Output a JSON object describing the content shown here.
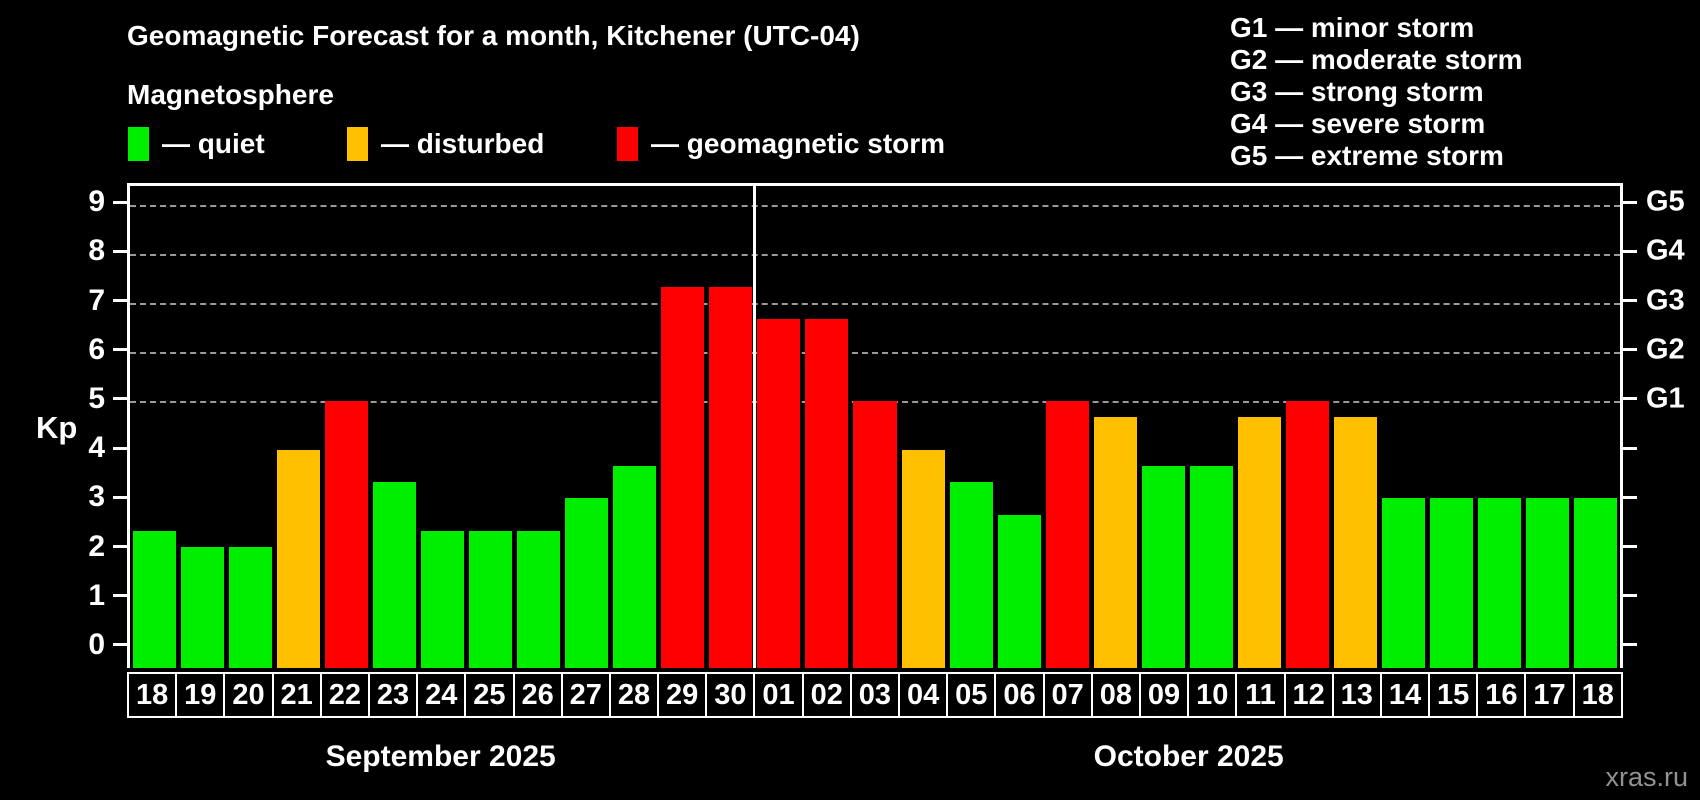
{
  "header": {
    "title": "Geomagnetic Forecast for a month, Kitchener (UTC-04)",
    "subtitle": "Magnetosphere"
  },
  "legend": {
    "items": [
      {
        "label": "— quiet",
        "level": "quiet"
      },
      {
        "label": "— disturbed",
        "level": "disturbed"
      },
      {
        "label": "— geomagnetic storm",
        "level": "storm"
      }
    ]
  },
  "storm_scale": [
    "G1 — minor storm",
    "G2 — moderate storm",
    "G3 — strong storm",
    "G4 — severe storm",
    "G5 — extreme storm"
  ],
  "footer": {
    "watermark": "xras.ru"
  },
  "colors": {
    "quiet": "#00EE00",
    "disturbed": "#FFC000",
    "storm": "#FF0000",
    "background": "#000000",
    "text": "#FFFFFF",
    "grid": "#9A9A9A",
    "axis": "#FFFFFF",
    "watermark": "#929292"
  },
  "chart_data": {
    "type": "bar",
    "title": "Geomagnetic Forecast for a month, Kitchener (UTC-04)",
    "xlabel": "",
    "ylabel": "Kp",
    "ylim": [
      0,
      9
    ],
    "y_ticks": [
      0,
      1,
      2,
      3,
      4,
      5,
      6,
      7,
      8,
      9
    ],
    "grid": "horizontal dashed lines at Kp 5-9 (G1-G5 storm levels)",
    "legend_position": "top-left",
    "right_axis": [
      {
        "kp": 5,
        "label": "G1"
      },
      {
        "kp": 6,
        "label": "G2"
      },
      {
        "kp": 7,
        "label": "G3"
      },
      {
        "kp": 8,
        "label": "G4"
      },
      {
        "kp": 9,
        "label": "G5"
      }
    ],
    "months": [
      {
        "label": "September 2025",
        "days": 13
      },
      {
        "label": "October 2025",
        "days": 18
      }
    ],
    "categories": [
      "18",
      "19",
      "20",
      "21",
      "22",
      "23",
      "24",
      "25",
      "26",
      "27",
      "28",
      "29",
      "30",
      "01",
      "02",
      "03",
      "04",
      "05",
      "06",
      "07",
      "08",
      "09",
      "10",
      "11",
      "12",
      "13",
      "14",
      "15",
      "16",
      "17",
      "18"
    ],
    "values": [
      2.33,
      2,
      2,
      4,
      5,
      3.33,
      2.33,
      2.33,
      2.33,
      3,
      3.67,
      7.33,
      7.33,
      6.67,
      6.67,
      5,
      4,
      3.33,
      2.67,
      5,
      4.67,
      3.67,
      3.67,
      4.67,
      5,
      4.67,
      3,
      3,
      3,
      3,
      3
    ],
    "levels": [
      "quiet",
      "quiet",
      "quiet",
      "disturbed",
      "storm",
      "quiet",
      "quiet",
      "quiet",
      "quiet",
      "quiet",
      "quiet",
      "storm",
      "storm",
      "storm",
      "storm",
      "storm",
      "disturbed",
      "quiet",
      "quiet",
      "storm",
      "disturbed",
      "quiet",
      "quiet",
      "disturbed",
      "storm",
      "disturbed",
      "quiet",
      "quiet",
      "quiet",
      "quiet",
      "quiet"
    ]
  }
}
